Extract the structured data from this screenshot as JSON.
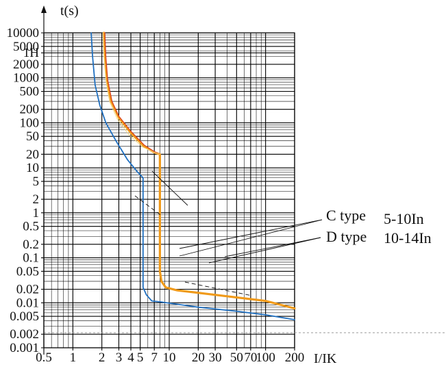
{
  "chart_data": {
    "type": "line",
    "title": "",
    "ylabel": "t(s)",
    "xlabel": "I/IK",
    "x_scale": "log",
    "y_scale": "log",
    "xlim": [
      0.5,
      200
    ],
    "ylim": [
      0.001,
      10000
    ],
    "grid": true,
    "x_ticks": [
      {
        "v": 0.5,
        "label": "0.5"
      },
      {
        "v": 1,
        "label": "1"
      },
      {
        "v": 2,
        "label": "2"
      },
      {
        "v": 3,
        "label": "3"
      },
      {
        "v": 4,
        "label": "4"
      },
      {
        "v": 5,
        "label": "5"
      },
      {
        "v": 7,
        "label": "7"
      },
      {
        "v": 10,
        "label": "10"
      },
      {
        "v": 20,
        "label": "20"
      },
      {
        "v": 30,
        "label": "30"
      },
      {
        "v": 50,
        "label": "50"
      },
      {
        "v": 70,
        "label": "70"
      },
      {
        "v": 100,
        "label": "100"
      },
      {
        "v": 200,
        "label": "200"
      }
    ],
    "y_ticks": [
      {
        "v": 10000,
        "label": "10000"
      },
      {
        "v": 5000,
        "label": "5000"
      },
      {
        "v": 3600,
        "label": "1H"
      },
      {
        "v": 2000,
        "label": "2000"
      },
      {
        "v": 1000,
        "label": "1000"
      },
      {
        "v": 500,
        "label": "500"
      },
      {
        "v": 200,
        "label": "200"
      },
      {
        "v": 100,
        "label": "100"
      },
      {
        "v": 50,
        "label": "50"
      },
      {
        "v": 20,
        "label": "20"
      },
      {
        "v": 10,
        "label": "10"
      },
      {
        "v": 5,
        "label": "5"
      },
      {
        "v": 2,
        "label": "2"
      },
      {
        "v": 1,
        "label": "1"
      },
      {
        "v": 0.5,
        "label": "0.5"
      },
      {
        "v": 0.2,
        "label": "0.2"
      },
      {
        "v": 0.1,
        "label": "0.1"
      },
      {
        "v": 0.05,
        "label": "0.05"
      },
      {
        "v": 0.02,
        "label": "0.02"
      },
      {
        "v": 0.01,
        "label": "0.01"
      },
      {
        "v": 0.005,
        "label": "0.005"
      },
      {
        "v": 0.002,
        "label": "0.002"
      },
      {
        "v": 0.001,
        "label": "0.001"
      }
    ],
    "series": [
      {
        "color": "#1f6fc0",
        "points": [
          [
            1.55,
            10000
          ],
          [
            1.6,
            3000
          ],
          [
            1.7,
            700
          ],
          [
            1.9,
            250
          ],
          [
            2.2,
            100
          ],
          [
            2.8,
            40
          ],
          [
            3.7,
            15
          ],
          [
            4.7,
            8
          ],
          [
            5.35,
            6
          ],
          [
            5.35,
            0.022
          ],
          [
            5.8,
            0.015
          ],
          [
            6.6,
            0.011
          ],
          [
            8,
            0.0105
          ],
          [
            20,
            0.008
          ],
          [
            50,
            0.0065
          ],
          [
            100,
            0.0054
          ],
          [
            200,
            0.0042
          ]
        ]
      },
      {
        "color": "#f09a1a",
        "points": [
          [
            2.1,
            10000
          ],
          [
            2.15,
            3000
          ],
          [
            2.25,
            900
          ],
          [
            2.5,
            300
          ],
          [
            3,
            130
          ],
          [
            4,
            60
          ],
          [
            5.5,
            30
          ],
          [
            7,
            22
          ],
          [
            8,
            20
          ],
          [
            8,
            0.05
          ],
          [
            8.3,
            0.03
          ],
          [
            9.2,
            0.022
          ],
          [
            12,
            0.019
          ],
          [
            30,
            0.015
          ],
          [
            100,
            0.011
          ],
          [
            200,
            0.0075
          ]
        ]
      },
      {
        "color": "#d83a1a",
        "points": [
          [
            2.15,
            10000
          ],
          [
            2.2,
            3000
          ],
          [
            2.3,
            900
          ],
          [
            2.55,
            300
          ],
          [
            3,
            140
          ],
          [
            4,
            65
          ],
          [
            5.5,
            32
          ],
          [
            7,
            23
          ],
          [
            8,
            20
          ]
        ]
      },
      {
        "color": "#f6d780",
        "points": [
          [
            2.05,
            10000
          ],
          [
            2.1,
            3000
          ],
          [
            2.2,
            900
          ],
          [
            2.4,
            300
          ],
          [
            2.9,
            120
          ],
          [
            3.8,
            55
          ],
          [
            5.3,
            29
          ],
          [
            7,
            22
          ],
          [
            8,
            20
          ]
        ]
      }
    ],
    "legend": [
      {
        "label": "C type",
        "value": "5-10In"
      },
      {
        "label": "D type",
        "value": "10-14In"
      }
    ]
  }
}
